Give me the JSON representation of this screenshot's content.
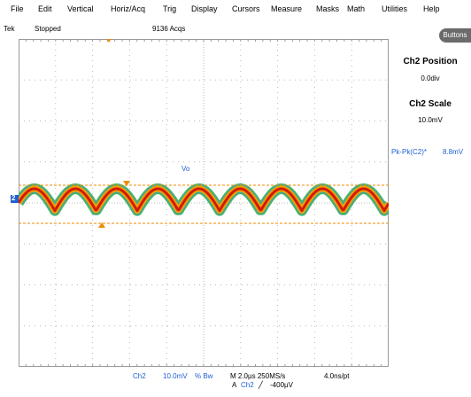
{
  "menu": [
    "File",
    "Edit",
    "Vertical",
    "Horiz/Acq",
    "Trig",
    "Display",
    "Cursors",
    "Measure",
    "Masks",
    "Math",
    "Utilities",
    "Help"
  ],
  "status": {
    "brand": "Tek",
    "run_state": "Stopped",
    "acqs": "9136 Acqs"
  },
  "side_panel": {
    "buttons_label": "Buttons",
    "position_title": "Ch2 Position",
    "position_value": "0.0div",
    "scale_title": "Ch2 Scale",
    "scale_value": "10.0mV"
  },
  "measurement": {
    "label": "Pk-Pk(C2)*",
    "value": "8.8mV"
  },
  "trace": {
    "label": "Vo",
    "channel_marker": "2"
  },
  "bottom": {
    "channel": "Ch2",
    "scale": "10.0mV",
    "coupling": "% Bw",
    "timebase": "M 2.0µs 250MS/s",
    "resolution": "4.0ns/pt",
    "trigger_source_prefix": "A",
    "trigger_source": "Ch2",
    "trigger_slope": "╱",
    "trigger_level": "-400µV"
  },
  "colors": {
    "trace_core": "#d21a0a",
    "trace_mid": "#f0a000",
    "trace_outer": "#2aa84a",
    "accent": "#1f5fd2",
    "cursor": "#f08a00"
  }
}
